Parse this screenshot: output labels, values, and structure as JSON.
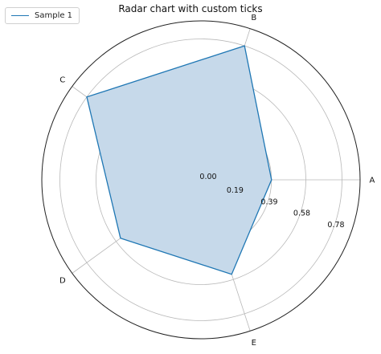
{
  "chart_data": {
    "type": "radar",
    "title": "Radar chart with custom ticks",
    "categories": [
      "A",
      "B",
      "C",
      "D",
      "E"
    ],
    "series": [
      {
        "name": "Sample 1",
        "values": [
          0.39,
          0.78,
          0.78,
          0.55,
          0.55
        ]
      }
    ],
    "radial_ticks": [
      "0.00",
      "0.19",
      "0.39",
      "0.58",
      "0.78"
    ],
    "radial_tick_values": [
      0,
      0.19,
      0.39,
      0.58,
      0.78
    ],
    "rlim": [
      0,
      0.88
    ],
    "grid": true,
    "legend": "top-left",
    "colors": {
      "series": "#1f77b4",
      "fill": "#c6d9ea",
      "grid": "#b8b8b8",
      "frame": "#222222"
    }
  }
}
